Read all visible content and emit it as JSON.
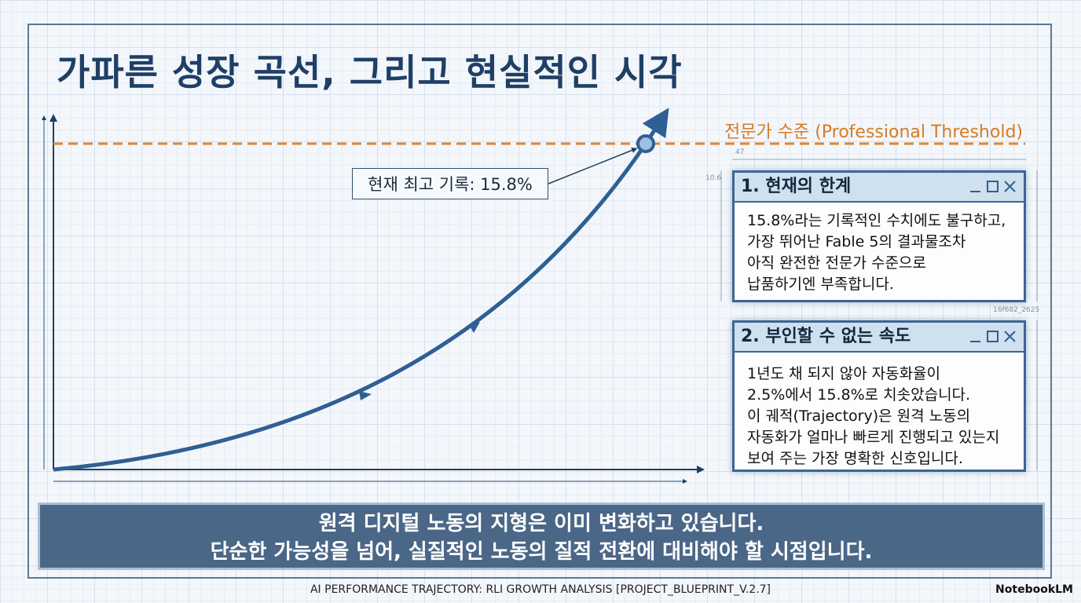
{
  "title": "가파른 성장 곡선, 그리고 현실적인 시각",
  "threshold_label": "전문가 수준 (Professional Threshold)",
  "callout": "현재 최고 기록: 15.8%",
  "dimension_labels": [
    "47",
    "10.6",
    "16f682_2625"
  ],
  "panels": [
    {
      "title": "1. 현재의 한계",
      "lines": [
        "15.8%라는 기록적인 수치에도 불구하고,",
        "가장 뛰어난 Fable 5의 결과물조차",
        "아직 완전한 전문가 수준으로",
        "납품하기엔 부족합니다."
      ]
    },
    {
      "title": "2. 부인할 수 없는 속도",
      "lines": [
        "1년도 채 되지 않아 자동화율이",
        "2.5%에서 15.8%로 치솟았습니다.",
        "이 궤적(Trajectory)은 원격 노동의",
        "자동화가 얼마나 빠르게 진행되고 있는지",
        "보여 주는 가장 명확한 신호입니다."
      ]
    }
  ],
  "banner": {
    "lines": [
      "원격 디지털 노동의 지형은 이미 변화하고 있습니다.",
      "단순한 가능성을 넘어, 실질적인 노동의 질적 전환에 대비해야 할 시점입니다."
    ]
  },
  "footer": "AI PERFORMANCE TRAJECTORY: RLI GROWTH ANALYSIS [PROJECT_BLUEPRINT_V.2.7]",
  "brand": "NotebookLM"
}
